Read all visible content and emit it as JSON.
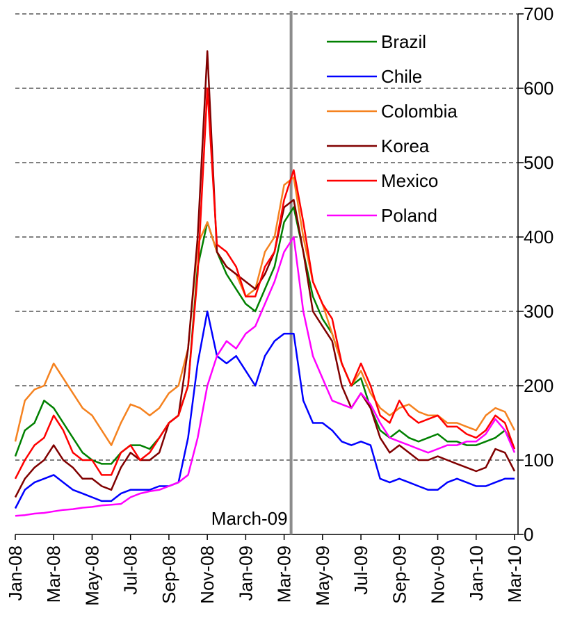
{
  "chart_data": {
    "type": "line",
    "categories": [
      "Jan-08",
      null,
      null,
      null,
      "Mar-08",
      null,
      null,
      null,
      "May-08",
      null,
      null,
      null,
      "Jul-08",
      null,
      null,
      null,
      "Sep-08",
      null,
      null,
      null,
      "Nov-08",
      null,
      null,
      null,
      "Jan-09",
      null,
      null,
      null,
      "Mar-09",
      null,
      null,
      null,
      "May-09",
      null,
      null,
      null,
      "Jul-09",
      null,
      null,
      null,
      "Sep-09",
      null,
      null,
      null,
      "Nov-09",
      null,
      null,
      null,
      "Jan-10",
      null,
      null,
      null,
      "Mar-10"
    ],
    "series": [
      {
        "name": "Brazil",
        "color": "#008000",
        "values": [
          105,
          140,
          150,
          180,
          170,
          150,
          130,
          110,
          100,
          95,
          95,
          110,
          120,
          120,
          115,
          130,
          150,
          160,
          200,
          360,
          420,
          380,
          350,
          330,
          310,
          300,
          330,
          360,
          420,
          440,
          380,
          320,
          290,
          270,
          230,
          200,
          210,
          170,
          140,
          130,
          140,
          130,
          125,
          130,
          135,
          125,
          125,
          120,
          120,
          125,
          130,
          140,
          115
        ]
      },
      {
        "name": "Chile",
        "color": "#0000ff",
        "values": [
          35,
          60,
          70,
          75,
          80,
          70,
          60,
          55,
          50,
          45,
          45,
          55,
          60,
          60,
          60,
          65,
          65,
          70,
          130,
          230,
          300,
          240,
          230,
          240,
          220,
          200,
          240,
          260,
          270,
          270,
          180,
          150,
          150,
          140,
          125,
          120,
          125,
          120,
          75,
          70,
          75,
          70,
          65,
          60,
          60,
          70,
          75,
          70,
          65,
          65,
          70,
          75,
          75
        ]
      },
      {
        "name": "Colombia",
        "color": "#f5821f",
        "values": [
          125,
          180,
          195,
          200,
          230,
          210,
          190,
          170,
          160,
          140,
          120,
          150,
          175,
          170,
          160,
          170,
          190,
          200,
          250,
          390,
          420,
          380,
          360,
          350,
          320,
          330,
          380,
          400,
          470,
          480,
          400,
          340,
          310,
          270,
          230,
          200,
          220,
          190,
          170,
          160,
          170,
          175,
          165,
          160,
          160,
          150,
          150,
          145,
          140,
          160,
          170,
          165,
          140
        ]
      },
      {
        "name": "Korea",
        "color": "#800000",
        "values": [
          50,
          75,
          90,
          100,
          120,
          100,
          90,
          75,
          75,
          65,
          60,
          90,
          110,
          100,
          100,
          110,
          150,
          160,
          250,
          400,
          650,
          380,
          360,
          350,
          340,
          330,
          350,
          380,
          440,
          450,
          380,
          300,
          280,
          260,
          200,
          170,
          190,
          170,
          130,
          110,
          120,
          110,
          100,
          100,
          105,
          100,
          95,
          90,
          85,
          90,
          115,
          110,
          85
        ]
      },
      {
        "name": "Mexico",
        "color": "#ff0000",
        "values": [
          75,
          100,
          120,
          130,
          160,
          140,
          110,
          100,
          100,
          80,
          80,
          110,
          120,
          100,
          110,
          130,
          150,
          160,
          200,
          350,
          600,
          390,
          380,
          360,
          320,
          320,
          360,
          380,
          450,
          490,
          420,
          340,
          310,
          290,
          230,
          200,
          230,
          200,
          160,
          150,
          180,
          160,
          150,
          155,
          160,
          145,
          145,
          135,
          130,
          140,
          160,
          150,
          115
        ]
      },
      {
        "name": "Poland",
        "color": "#ff00ff",
        "values": [
          25,
          26,
          28,
          29,
          31,
          33,
          34,
          36,
          37,
          39,
          40,
          41,
          50,
          55,
          58,
          60,
          65,
          70,
          80,
          130,
          200,
          240,
          260,
          250,
          270,
          280,
          310,
          340,
          380,
          400,
          300,
          240,
          210,
          180,
          175,
          170,
          190,
          175,
          150,
          130,
          125,
          120,
          115,
          110,
          115,
          120,
          120,
          125,
          125,
          135,
          155,
          140,
          110
        ]
      }
    ],
    "ylim": [
      0,
      700
    ],
    "yticks": [
      0,
      100,
      200,
      300,
      400,
      500,
      600,
      700
    ],
    "grid": true,
    "legend": "upper-right",
    "annotation": {
      "text": "March-09",
      "at": "Mar-09"
    }
  }
}
